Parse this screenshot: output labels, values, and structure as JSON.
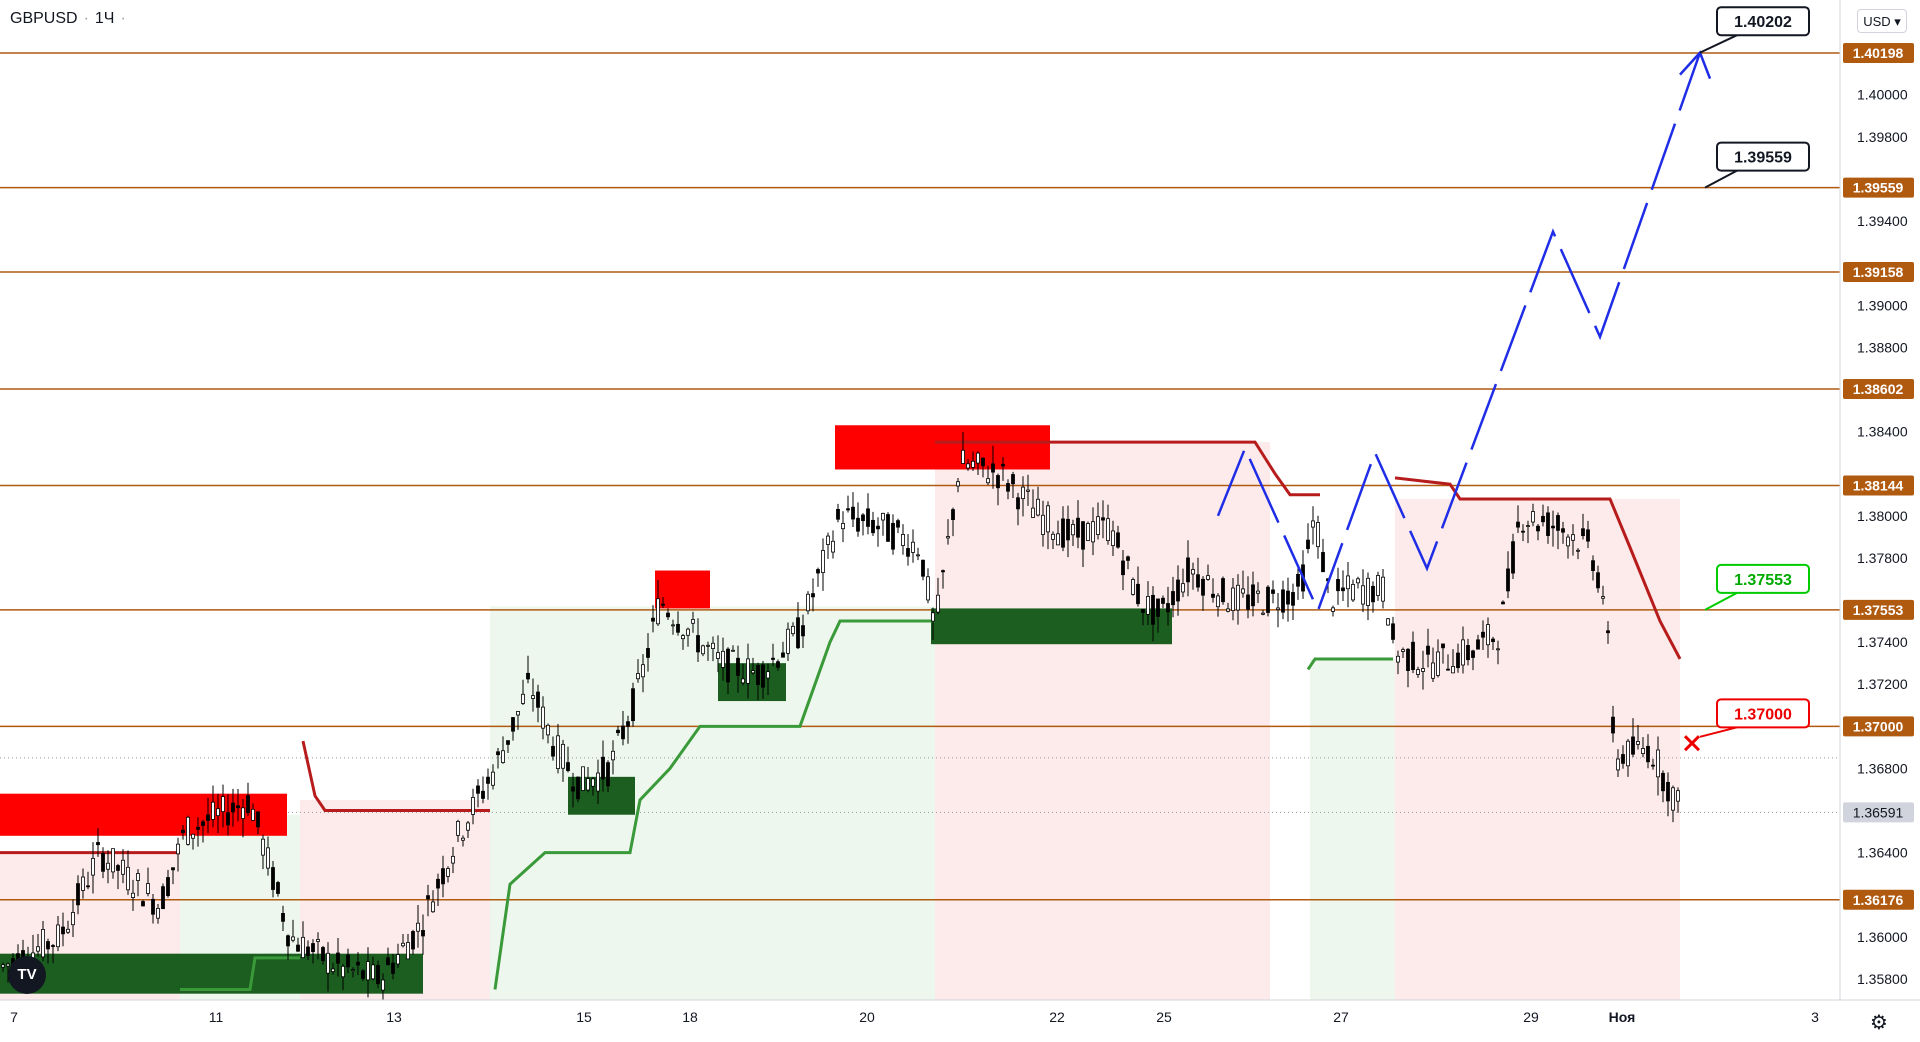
{
  "header": {
    "symbol": "GBPUSD",
    "timeframe": "1Ч"
  },
  "currency_button": "USD",
  "colors": {
    "level_line": "#b05a10",
    "level_label_bg": "#b05a10",
    "bull": "#1b5e20",
    "bear": "#ff0000",
    "trail_up": "#3a9a3a",
    "trail_down": "#b71c1c",
    "projection": "#1f2ee6",
    "current_price_bg": "#d1d4dc"
  },
  "chart_data": {
    "type": "candlestick",
    "y_range": [
      1.357,
      1.4045
    ],
    "y_ticks": [
      "1.35800",
      "1.36000",
      "1.36400",
      "1.36800",
      "1.37200",
      "1.37400",
      "1.37800",
      "1.38000",
      "1.38400",
      "1.38800",
      "1.39000",
      "1.39400",
      "1.39800",
      "1.40000"
    ],
    "x_ticks": [
      "7",
      "11",
      "13",
      "15",
      "18",
      "20",
      "22",
      "25",
      "27",
      "29",
      "Ноя",
      "3"
    ],
    "levels": [
      "1.40198",
      "1.39559",
      "1.39158",
      "1.38602",
      "1.38144",
      "1.37553",
      "1.37000",
      "1.36176"
    ],
    "current_price": "1.36591",
    "targets": [
      {
        "label": "1.40202",
        "style": "black"
      },
      {
        "label": "1.39559",
        "style": "black"
      },
      {
        "label": "1.37553",
        "style": "green"
      },
      {
        "label": "1.37000",
        "style": "red"
      }
    ],
    "zones": [
      {
        "type": "supply",
        "from": 1.3648,
        "to": 1.3668
      },
      {
        "type": "demand",
        "from": 1.3573,
        "to": 1.3592
      },
      {
        "type": "demand",
        "from": 1.3658,
        "to": 1.3676
      },
      {
        "type": "supply",
        "from": 1.3756,
        "to": 1.3774
      },
      {
        "type": "demand",
        "from": 1.3712,
        "to": 1.373
      },
      {
        "type": "supply",
        "from": 1.3822,
        "to": 1.3843
      },
      {
        "type": "demand",
        "from": 1.3739,
        "to": 1.3756
      }
    ],
    "projection_path": [
      1.38,
      1.3832,
      1.3755,
      1.383,
      1.3775,
      1.3935,
      1.3885,
      1.402
    ]
  }
}
